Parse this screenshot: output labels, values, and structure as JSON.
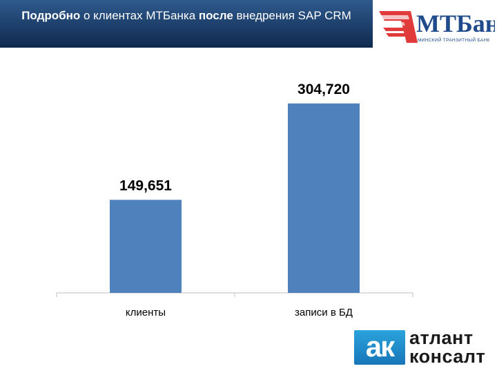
{
  "header": {
    "part1": "Подробно",
    "part2": " о клиентах МТБанка ",
    "part3": "после",
    "part4": " внедрения SAP CRM"
  },
  "logos": {
    "mt_name": "МТБанк",
    "mt_subtitle": "МИНСКИЙ ТРАНЗИТНЫЙ БАНК",
    "ak_mark": "ак",
    "ak_line1": "атлант",
    "ak_line2": "консалт"
  },
  "colors": {
    "bar": "#4f81bd",
    "header": "#1d3f6b",
    "mt_red": "#e03a3a",
    "mt_blue": "#1f4a8c",
    "ak_blue": "#1e88c8"
  },
  "chart_data": {
    "type": "bar",
    "categories": [
      "клиенты",
      "записи в БД"
    ],
    "values": [
      149651,
      304720
    ],
    "data_labels": [
      "149,651",
      "304,720"
    ],
    "title": "",
    "xlabel": "",
    "ylabel": "",
    "ylim": [
      0,
      350000
    ],
    "grid": false,
    "legend": "none"
  }
}
